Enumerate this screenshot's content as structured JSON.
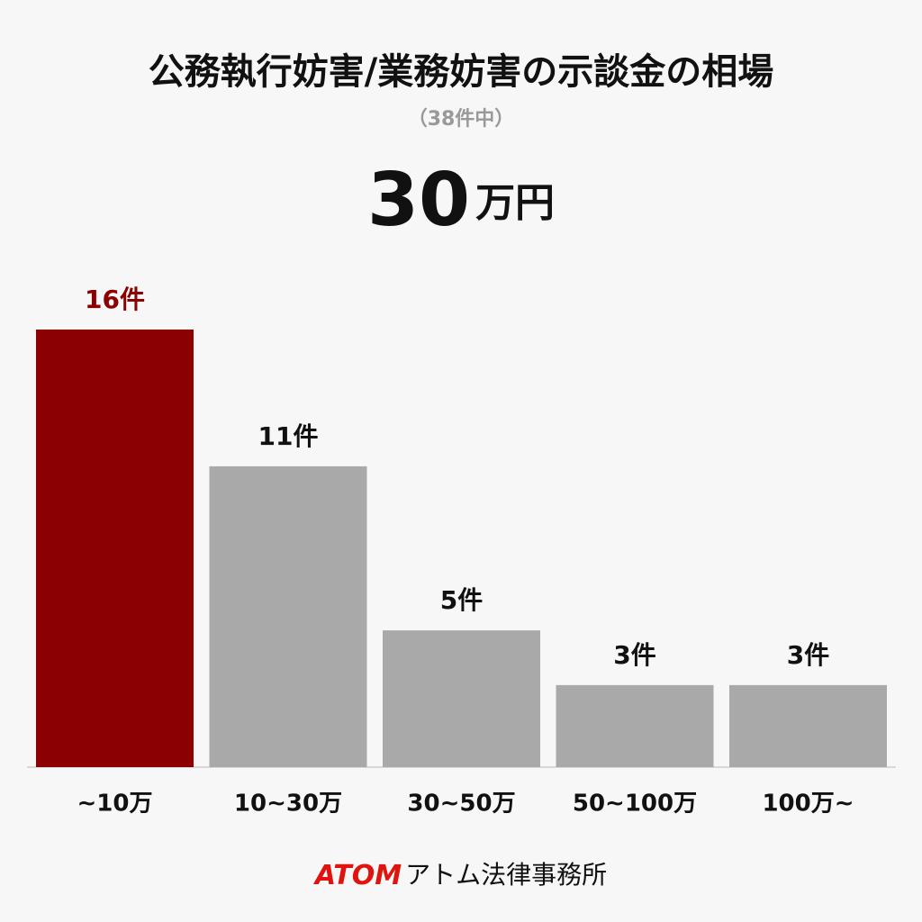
{
  "chart_data": {
    "type": "bar",
    "title": "公務執行妨害/業務妨害の示談金の相場",
    "subtitle": "（38件中）",
    "headline_value": "30",
    "headline_unit": "万円",
    "categories": [
      "~10万",
      "10~30万",
      "30~50万",
      "50~100万",
      "100万~"
    ],
    "values": [
      16,
      11,
      5,
      3,
      3
    ],
    "value_labels": [
      "16件",
      "11件",
      "5件",
      "3件",
      "3件"
    ],
    "colors": [
      "#8b0000",
      "#a9a9a9",
      "#a9a9a9",
      "#a9a9a9",
      "#a9a9a9"
    ],
    "label_colors": [
      "#8b0000",
      "#111111",
      "#111111",
      "#111111",
      "#111111"
    ],
    "footer_brand": "ATOM",
    "footer_text": "アトム法律事務所"
  }
}
